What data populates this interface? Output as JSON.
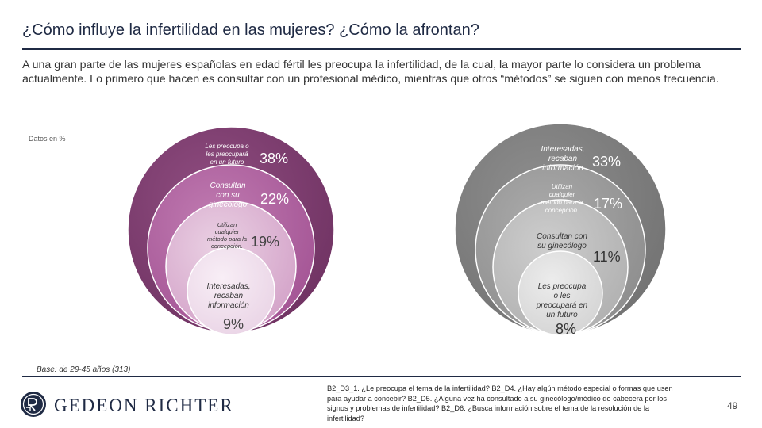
{
  "page": {
    "title": "¿Cómo influye la infertilidad en las mujeres? ¿Cómo la afrontan?",
    "intro": "A una gran parte de las mujeres españolas en edad fértil les preocupa la infertilidad, de la cual, la mayor parte lo considera un problema actualmente. Lo primero que hacen es consultar con un profesional médico, mientras que otros “métodos” se siguen con menos frecuencia.",
    "unit_note": "Datos en %",
    "base_note": "Base: de 29-45 años (313)",
    "question_text": "B2_D3_1. ¿Le preocupa el tema de la infertilidad? B2_D4. ¿Hay algún método especial o formas que usen para ayudar a concebir? B2_D5. ¿Alguna vez ha consultado a su ginecólogo/médico de cabecera por los signos y problemas de infertilidad? B2_D6. ¿Busca información sobre el tema de la resolución de la infertilidad?",
    "page_number": "49",
    "brand": "Gedeon Richter",
    "brand_display": "GEDEON RICHTER"
  },
  "chart_data": [
    {
      "type": "nested-circles",
      "title": "",
      "unit": "%",
      "items": [
        {
          "label": "Les preocupa o les preocupará en un futuro",
          "value": 38,
          "value_label": "38%",
          "color": "#7a3a6b"
        },
        {
          "label": "Consultan con su ginecólogo",
          "value": 22,
          "value_label": "22%",
          "color": "#a04f8f"
        },
        {
          "label": "Utilizan cualquier método para la concepción.",
          "value": 19,
          "value_label": "19%",
          "color": "#d7a7cc"
        },
        {
          "label": "Interesadas, recaban información",
          "value": 9,
          "value_label": "9%",
          "color": "#eed9ea"
        }
      ]
    },
    {
      "type": "nested-circles",
      "title": "",
      "unit": "%",
      "items": [
        {
          "label": "Interesadas, recaban información",
          "value": 33,
          "value_label": "33%",
          "color": "#7d7d7d"
        },
        {
          "label": "Utilizan cualquier método para la concepción.",
          "value": 17,
          "value_label": "17%",
          "color": "#989898"
        },
        {
          "label": "Consultan con su ginecólogo",
          "value": 11,
          "value_label": "11%",
          "color": "#b9b9b9"
        },
        {
          "label": "Les preocupa o les preocupará en un futuro",
          "value": 8,
          "value_label": "8%",
          "color": "#d7d7d7"
        }
      ]
    }
  ]
}
